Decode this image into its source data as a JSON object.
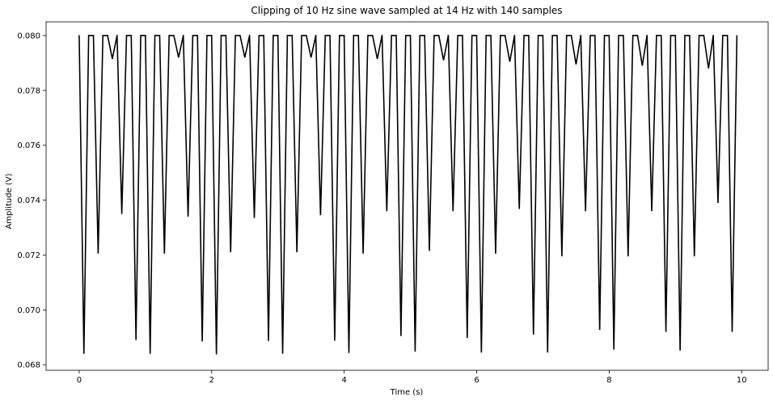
{
  "chart_data": {
    "type": "line",
    "title": "Clipping of 10 Hz sine wave sampled at 14 Hz with 140 samples",
    "xlabel": "Time (s)",
    "ylabel": "Amplitude (V)",
    "xlim": [
      -0.5,
      10.4
    ],
    "ylim": [
      0.0678,
      0.0805
    ],
    "x_ticks": [
      0,
      2,
      4,
      6,
      8,
      10
    ],
    "x_tick_labels": [
      "0",
      "2",
      "4",
      "6",
      "8",
      "10"
    ],
    "y_ticks": [
      0.068,
      0.07,
      0.072,
      0.074,
      0.076,
      0.078,
      0.08
    ],
    "y_tick_labels": [
      "0.068",
      "0.070",
      "0.072",
      "0.074",
      "0.076",
      "0.078",
      "0.080"
    ],
    "grid": false,
    "line_color": "#000000",
    "series": [
      {
        "dips": [
          [
            0.071,
            0.0684
          ],
          [
            0.286,
            0.07205
          ],
          [
            0.5,
            0.07915
          ],
          [
            0.643,
            0.0735
          ],
          [
            0.857,
            0.0689
          ],
          [
            1.071,
            0.0684
          ],
          [
            1.286,
            0.07205
          ],
          [
            1.5,
            0.0792
          ],
          [
            1.643,
            0.0734
          ],
          [
            1.857,
            0.06885
          ],
          [
            2.071,
            0.06838
          ],
          [
            2.286,
            0.0721
          ],
          [
            2.5,
            0.0792
          ],
          [
            2.643,
            0.07335
          ],
          [
            2.857,
            0.06887
          ],
          [
            3.071,
            0.0684
          ],
          [
            3.286,
            0.0721
          ],
          [
            3.5,
            0.0792
          ],
          [
            3.643,
            0.07345
          ],
          [
            3.857,
            0.06888
          ],
          [
            4.071,
            0.06843
          ],
          [
            4.286,
            0.07205
          ],
          [
            4.5,
            0.07915
          ],
          [
            4.643,
            0.0736
          ],
          [
            4.857,
            0.06905
          ],
          [
            5.071,
            0.06848
          ],
          [
            5.286,
            0.07215
          ],
          [
            5.5,
            0.0791
          ],
          [
            5.643,
            0.0736
          ],
          [
            5.857,
            0.06898
          ],
          [
            6.071,
            0.06845
          ],
          [
            6.286,
            0.07205
          ],
          [
            6.5,
            0.07905
          ],
          [
            6.643,
            0.07368
          ],
          [
            6.857,
            0.0691
          ],
          [
            7.071,
            0.06845
          ],
          [
            7.286,
            0.07195
          ],
          [
            7.5,
            0.07895
          ],
          [
            7.643,
            0.0736
          ],
          [
            7.857,
            0.06927
          ],
          [
            8.071,
            0.06855
          ],
          [
            8.286,
            0.07195
          ],
          [
            8.5,
            0.0789
          ],
          [
            8.643,
            0.0736
          ],
          [
            8.857,
            0.0692
          ],
          [
            9.071,
            0.06852
          ],
          [
            9.286,
            0.07195
          ],
          [
            9.5,
            0.0788
          ],
          [
            9.643,
            0.0739
          ],
          [
            9.857,
            0.0692
          ]
        ],
        "peak_value": 0.08,
        "x_start": 0.0,
        "x_end": 9.929
      }
    ]
  }
}
